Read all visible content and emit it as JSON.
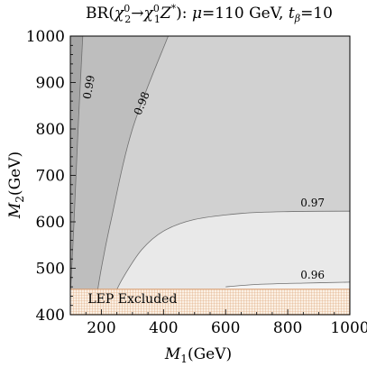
{
  "chart_data": {
    "type": "contour",
    "title": "BR(χ₂⁰→χ₁⁰Z*): μ=110 GeV, t_β=10",
    "title_parts": {
      "prefix": "BR(",
      "chi2": "χ",
      "chi2_sup": "0",
      "chi2_sub": "2",
      "arrow": "→",
      "chi1": "χ",
      "chi1_sup": "0",
      "chi1_sub": "1",
      "z": "Z",
      "z_sup": "*",
      "suffix1": "): ",
      "mu": "μ",
      "mu_value": "=110 GeV, ",
      "t": "t",
      "t_sub": "β",
      "t_value": "=10"
    },
    "xlabel": {
      "main": "M",
      "sub": "1",
      "unit": "(GeV)"
    },
    "ylabel": {
      "main": "M",
      "sub": "2",
      "unit": "(GeV)"
    },
    "xlim": [
      100,
      1000
    ],
    "ylim": [
      400,
      1000
    ],
    "xticks": [
      200,
      400,
      600,
      800,
      1000
    ],
    "yticks": [
      400,
      500,
      600,
      700,
      800,
      900,
      1000
    ],
    "grid": false,
    "contours": [
      {
        "label": "0.99",
        "label_at": [
          160,
          890
        ],
        "points": [
          [
            140,
            1000
          ],
          [
            125,
            800
          ],
          [
            112,
            600
          ],
          [
            100,
            440
          ]
        ]
      },
      {
        "label": "0.98",
        "label_at": [
          330,
          855
        ],
        "points": [
          [
            415,
            1000
          ],
          [
            300,
            800
          ],
          [
            230,
            600
          ],
          [
            200,
            500
          ],
          [
            185,
            440
          ]
        ]
      },
      {
        "label": "0.97",
        "label_at": [
          880,
          633
        ],
        "points": [
          [
            240,
            440
          ],
          [
            270,
            480
          ],
          [
            330,
            540
          ],
          [
            400,
            580
          ],
          [
            500,
            605
          ],
          [
            650,
            618
          ],
          [
            800,
            622
          ],
          [
            1000,
            623
          ]
        ]
      },
      {
        "label": "0.96",
        "label_at": [
          880,
          478
        ],
        "points": [
          [
            600,
            460
          ],
          [
            700,
            465
          ],
          [
            850,
            468
          ],
          [
            1000,
            470
          ]
        ]
      }
    ],
    "regions": [
      {
        "name": "above-0.99",
        "color": "#a6a6a6"
      },
      {
        "name": "0.98-0.99",
        "color": "#bebebe"
      },
      {
        "name": "0.97-0.98",
        "color": "#d1d1d1"
      },
      {
        "name": "0.96-0.97",
        "color": "#e9e9e9"
      },
      {
        "name": "below-0.96",
        "color": "#f4f4f4"
      }
    ],
    "excluded_band": {
      "label": "LEP Excluded",
      "y_range": [
        400,
        455
      ],
      "color": "#e0a070",
      "fill": "#fbf0e4"
    }
  }
}
